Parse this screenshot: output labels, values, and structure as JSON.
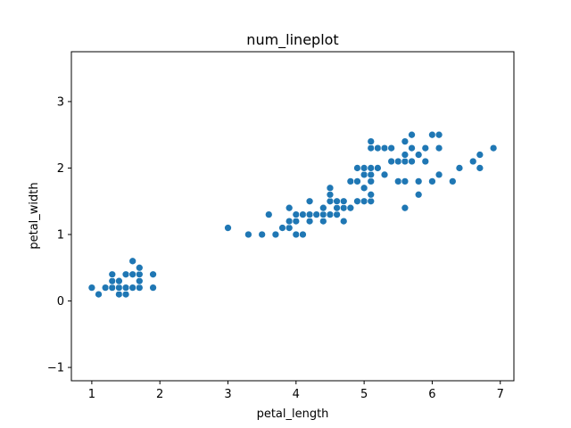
{
  "chart_data": {
    "type": "scatter",
    "title": "num_lineplot",
    "xlabel": "petal_length",
    "ylabel": "petal_width",
    "xlim": [
      0.7,
      7.2
    ],
    "ylim": [
      -1.2,
      3.75
    ],
    "xticks": [
      1,
      2,
      3,
      4,
      5,
      6,
      7
    ],
    "yticks": [
      -1,
      0,
      1,
      2,
      3
    ],
    "grid": false,
    "color": "#1f77b4",
    "points": [
      [
        1.0,
        0.2
      ],
      [
        1.1,
        0.1
      ],
      [
        1.2,
        0.2
      ],
      [
        1.3,
        0.2
      ],
      [
        1.3,
        0.3
      ],
      [
        1.3,
        0.4
      ],
      [
        1.4,
        0.1
      ],
      [
        1.4,
        0.2
      ],
      [
        1.4,
        0.3
      ],
      [
        1.5,
        0.1
      ],
      [
        1.5,
        0.2
      ],
      [
        1.5,
        0.4
      ],
      [
        1.6,
        0.2
      ],
      [
        1.6,
        0.4
      ],
      [
        1.6,
        0.6
      ],
      [
        1.7,
        0.2
      ],
      [
        1.7,
        0.3
      ],
      [
        1.7,
        0.4
      ],
      [
        1.7,
        0.5
      ],
      [
        1.9,
        0.2
      ],
      [
        1.9,
        0.4
      ],
      [
        3.0,
        1.1
      ],
      [
        3.3,
        1.0
      ],
      [
        3.5,
        1.0
      ],
      [
        3.6,
        1.3
      ],
      [
        3.7,
        1.0
      ],
      [
        3.8,
        1.1
      ],
      [
        3.9,
        1.1
      ],
      [
        3.9,
        1.2
      ],
      [
        3.9,
        1.4
      ],
      [
        4.0,
        1.0
      ],
      [
        4.0,
        1.2
      ],
      [
        4.0,
        1.3
      ],
      [
        4.1,
        1.0
      ],
      [
        4.1,
        1.3
      ],
      [
        4.2,
        1.2
      ],
      [
        4.2,
        1.3
      ],
      [
        4.2,
        1.5
      ],
      [
        4.3,
        1.3
      ],
      [
        4.4,
        1.2
      ],
      [
        4.4,
        1.3
      ],
      [
        4.4,
        1.4
      ],
      [
        4.5,
        1.3
      ],
      [
        4.5,
        1.5
      ],
      [
        4.5,
        1.6
      ],
      [
        4.5,
        1.7
      ],
      [
        4.6,
        1.3
      ],
      [
        4.6,
        1.4
      ],
      [
        4.6,
        1.5
      ],
      [
        4.7,
        1.2
      ],
      [
        4.7,
        1.4
      ],
      [
        4.7,
        1.5
      ],
      [
        4.8,
        1.4
      ],
      [
        4.8,
        1.8
      ],
      [
        4.9,
        1.5
      ],
      [
        4.9,
        1.8
      ],
      [
        4.9,
        2.0
      ],
      [
        5.0,
        1.5
      ],
      [
        5.0,
        1.7
      ],
      [
        5.0,
        1.9
      ],
      [
        5.0,
        2.0
      ],
      [
        5.1,
        1.5
      ],
      [
        5.1,
        1.6
      ],
      [
        5.1,
        1.8
      ],
      [
        5.1,
        1.9
      ],
      [
        5.1,
        2.0
      ],
      [
        5.1,
        2.3
      ],
      [
        5.1,
        2.4
      ],
      [
        5.2,
        2.0
      ],
      [
        5.2,
        2.3
      ],
      [
        5.3,
        1.9
      ],
      [
        5.3,
        2.3
      ],
      [
        5.4,
        2.1
      ],
      [
        5.4,
        2.3
      ],
      [
        5.5,
        1.8
      ],
      [
        5.5,
        2.1
      ],
      [
        5.6,
        1.4
      ],
      [
        5.6,
        1.8
      ],
      [
        5.6,
        2.1
      ],
      [
        5.6,
        2.2
      ],
      [
        5.6,
        2.4
      ],
      [
        5.7,
        2.1
      ],
      [
        5.7,
        2.3
      ],
      [
        5.7,
        2.5
      ],
      [
        5.8,
        1.6
      ],
      [
        5.8,
        1.8
      ],
      [
        5.8,
        2.2
      ],
      [
        5.9,
        2.1
      ],
      [
        5.9,
        2.3
      ],
      [
        6.0,
        1.8
      ],
      [
        6.0,
        2.5
      ],
      [
        6.1,
        1.9
      ],
      [
        6.1,
        2.3
      ],
      [
        6.1,
        2.5
      ],
      [
        6.3,
        1.8
      ],
      [
        6.4,
        2.0
      ],
      [
        6.6,
        2.1
      ],
      [
        6.7,
        2.0
      ],
      [
        6.7,
        2.2
      ],
      [
        6.9,
        2.3
      ]
    ]
  }
}
